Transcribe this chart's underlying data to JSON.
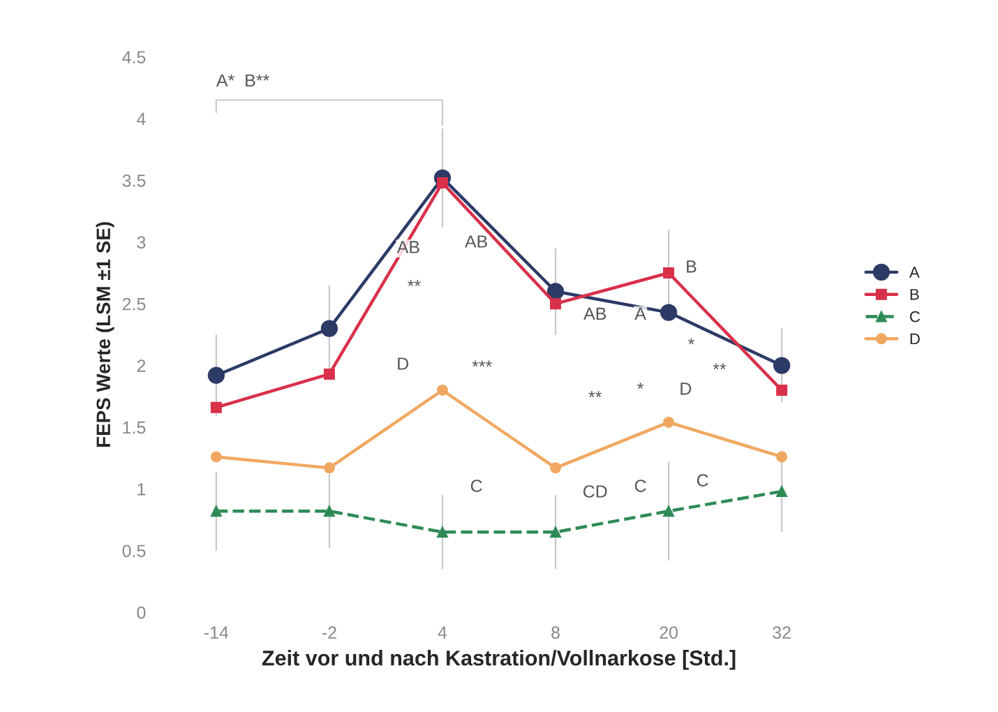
{
  "chart_data": {
    "type": "line",
    "xlabel": "Zeit vor und nach Kastration/Vollnarkose [Std.]",
    "ylabel": "FEPS Werte (LSM ±1 SE)",
    "categories": [
      "-14",
      "-2",
      "4",
      "8",
      "20",
      "32"
    ],
    "ylim": [
      0,
      4.5
    ],
    "yticks": [
      0,
      0.5,
      1,
      1.5,
      2,
      2.5,
      3,
      3.5,
      4,
      4.5
    ],
    "legend": "right",
    "series": [
      {
        "name": "A",
        "color": "#2c3a66",
        "marker": "circle",
        "line_style": "solid",
        "values": [
          1.92,
          2.3,
          3.52,
          2.6,
          2.43,
          2.0
        ],
        "errors": [
          0.33,
          0.35,
          0.4,
          0.35,
          null,
          0.3
        ]
      },
      {
        "name": "B",
        "color": "#d9304a",
        "marker": "square",
        "line_style": "solid",
        "values": [
          1.66,
          1.93,
          3.48,
          2.5,
          2.75,
          1.8
        ],
        "errors": [
          null,
          null,
          null,
          null,
          0.35,
          null
        ]
      },
      {
        "name": "C",
        "color": "#2e8b57",
        "marker": "triangle",
        "line_style": "dashed",
        "values": [
          0.82,
          0.82,
          0.65,
          0.65,
          0.82,
          0.98
        ],
        "errors": [
          0.32,
          0.3,
          0.3,
          0.3,
          0.4,
          0.33
        ]
      },
      {
        "name": "D",
        "color": "#f0a860",
        "marker": "circle",
        "line_style": "solid",
        "values": [
          1.26,
          1.17,
          1.8,
          1.17,
          1.54,
          1.26
        ]
      }
    ],
    "annotations": [
      "A*  B**",
      "AB",
      "**",
      "D",
      "AB",
      "***",
      "C",
      "AB",
      "A",
      "B",
      "**",
      "*",
      "D",
      "*",
      "**",
      "CD",
      "C",
      "C"
    ]
  }
}
